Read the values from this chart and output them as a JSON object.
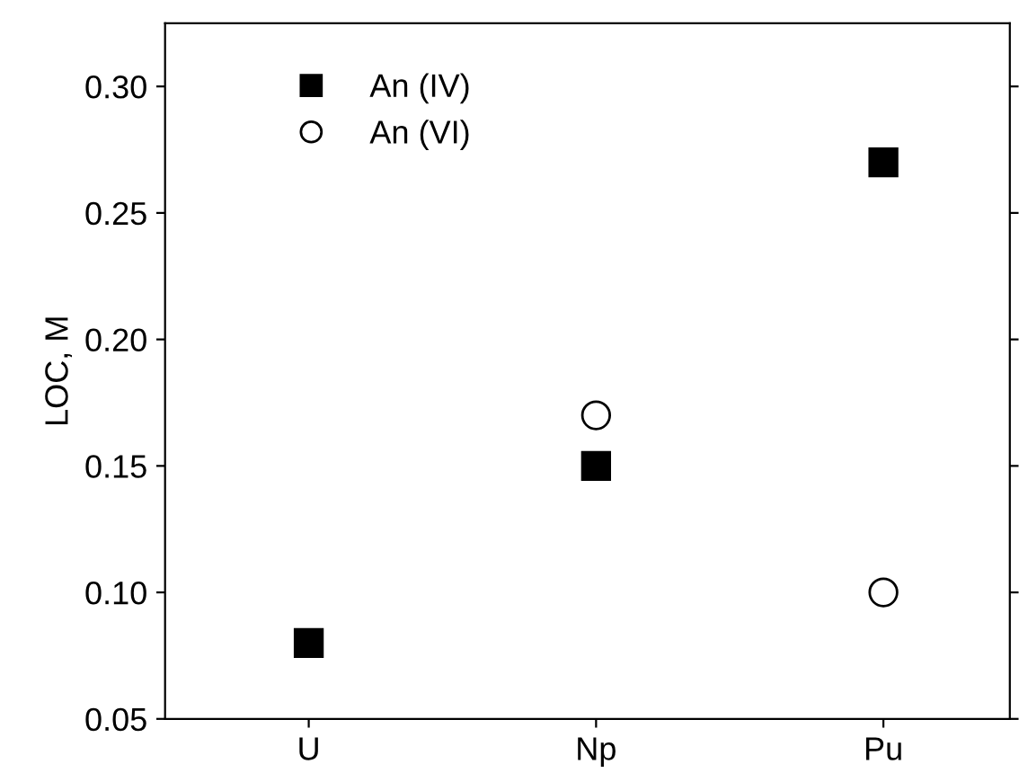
{
  "chart_data": {
    "type": "scatter",
    "ylabel": "LOC, M",
    "categories": [
      "U",
      "Np",
      "Pu"
    ],
    "series": [
      {
        "name": "An (IV)",
        "color": "#000000",
        "marker": "square",
        "values": [
          0.08,
          0.15,
          0.27
        ]
      },
      {
        "name": "An (VI)",
        "color": "#000000",
        "marker": "circle",
        "values": [
          null,
          0.17,
          0.1
        ]
      }
    ],
    "ylim": [
      0.05,
      0.325
    ],
    "yticks": [
      0.05,
      {
        "value": 0.1,
        "label": "0.10"
      },
      0.15,
      {
        "value": 0.2,
        "label": "0.20"
      },
      0.25,
      {
        "value": 0.3,
        "label": "0.30"
      }
    ],
    "grid": false,
    "legend": "top left"
  }
}
